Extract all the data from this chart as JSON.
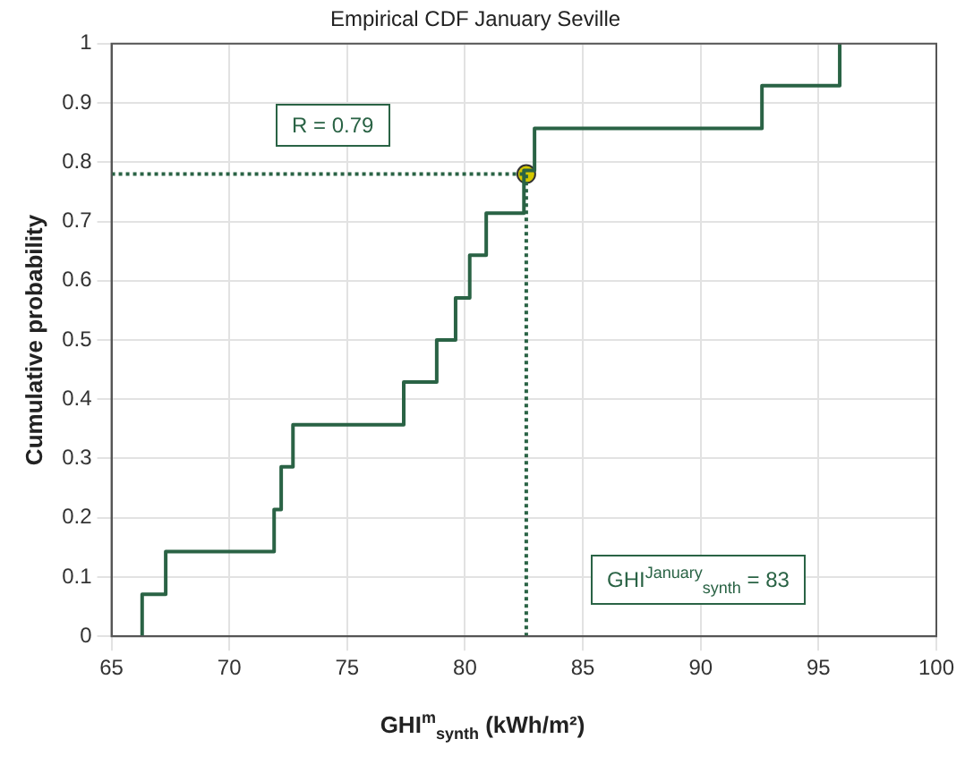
{
  "chart_data": {
    "type": "step",
    "title": "Empirical CDF January Seville",
    "xlabel": "GHI$^{m}$$_{synth}$ (kWh/m²)",
    "ylabel": "Cumulative probability",
    "series": [
      {
        "color": "#2a6345",
        "x": [
          66.3,
          66.3,
          67.3,
          71.9,
          72.2,
          72.7,
          77.4,
          78.8,
          79.6,
          80.2,
          80.9,
          82.5,
          82.95,
          92.6,
          95.9
        ],
        "values": [
          0,
          0.071,
          0.143,
          0.214,
          0.286,
          0.357,
          0.429,
          0.5,
          0.571,
          0.643,
          0.714,
          0.786,
          0.857,
          0.929,
          1
        ]
      },
      {
        "type": "line",
        "color": "#2a6345",
        "line_style": "dotted",
        "marker": "none",
        "x": [
          65,
          82.6,
          82.6
        ],
        "values": [
          0.78,
          0.78,
          0
        ]
      },
      {
        "type": "scatter",
        "color": "#d4c800",
        "marker": "circle",
        "x": [
          82.6
        ],
        "values": [
          0.78
        ]
      }
    ],
    "xlim": [
      65,
      100
    ],
    "xticks": [
      65,
      70,
      75,
      80,
      85,
      90,
      95,
      100
    ],
    "ylim": [
      0,
      1
    ],
    "yticks": [
      0,
      0.1,
      0.2,
      0.3,
      0.4,
      0.5,
      0.6,
      0.7,
      0.8,
      0.9,
      1
    ],
    "grid": true,
    "legend": false,
    "annotations": [
      "R = 0.79",
      "GHI$^{January}$$_{synth}$ = 83"
    ]
  }
}
